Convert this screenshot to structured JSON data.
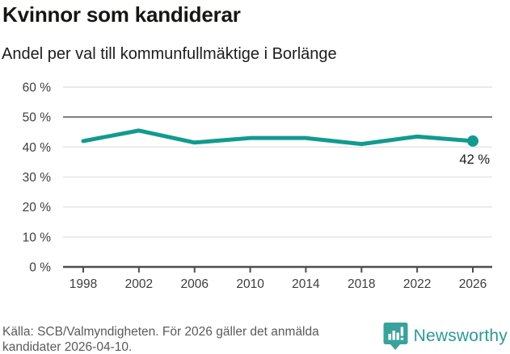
{
  "header": {
    "title": "Kvinnor som kandiderar",
    "subtitle": "Andel per val till kommunfullmäktige i Borlänge"
  },
  "chart_data": {
    "type": "line",
    "title": "Kvinnor som kandiderar",
    "subtitle": "Andel per val till kommunfullmäktige i Borlänge",
    "categories": [
      "1998",
      "2002",
      "2006",
      "2010",
      "2014",
      "2018",
      "2022",
      "2026"
    ],
    "values": [
      42,
      45.5,
      41.5,
      43,
      43,
      41,
      43.5,
      42
    ],
    "unit": "%",
    "ylim": [
      0,
      60
    ],
    "y_ticks": [
      0,
      10,
      20,
      30,
      40,
      50,
      60
    ],
    "y_tick_suffix": " %",
    "reference_line": 50,
    "grid": true,
    "legend": "none",
    "end_label": "42 %",
    "colors": {
      "line": "#129a90",
      "grid": "#e4e4e4",
      "reference": "#7a7a7a",
      "axis": "#4d4d4d",
      "tick_label": "#3d3d3d",
      "end_label": "#1a1a1a"
    }
  },
  "footer": {
    "source_line1": "Källa: SCB/Valmyndigheten. För 2026 gäller det anmälda",
    "source_line2": "kandidater 2026-04-10.",
    "brand": "Newsworthy",
    "logo_icon": "newsworthy-bar-chart-bubble-icon",
    "logo_color": "#3aa29d"
  }
}
